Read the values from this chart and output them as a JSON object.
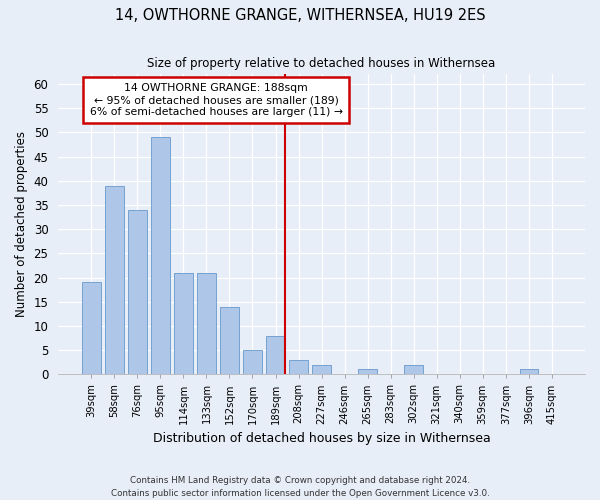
{
  "title": "14, OWTHORNE GRANGE, WITHERNSEA, HU19 2ES",
  "subtitle": "Size of property relative to detached houses in Withernsea",
  "xlabel": "Distribution of detached houses by size in Withernsea",
  "ylabel": "Number of detached properties",
  "categories": [
    "39sqm",
    "58sqm",
    "76sqm",
    "95sqm",
    "114sqm",
    "133sqm",
    "152sqm",
    "170sqm",
    "189sqm",
    "208sqm",
    "227sqm",
    "246sqm",
    "265sqm",
    "283sqm",
    "302sqm",
    "321sqm",
    "340sqm",
    "359sqm",
    "377sqm",
    "396sqm",
    "415sqm"
  ],
  "values": [
    19,
    39,
    34,
    49,
    21,
    21,
    14,
    5,
    8,
    3,
    2,
    0,
    1,
    0,
    2,
    0,
    0,
    0,
    0,
    1,
    0
  ],
  "bar_color": "#aec6e8",
  "bar_edge_color": "#6699cc",
  "marker_index": 8,
  "marker_color": "#cc0000",
  "annotation_title": "14 OWTHORNE GRANGE: 188sqm",
  "annotation_line1": "← 95% of detached houses are smaller (189)",
  "annotation_line2": "6% of semi-detached houses are larger (11) →",
  "annotation_box_color": "#cc0000",
  "ylim": [
    0,
    62
  ],
  "yticks": [
    0,
    5,
    10,
    15,
    20,
    25,
    30,
    35,
    40,
    45,
    50,
    55,
    60
  ],
  "footer1": "Contains HM Land Registry data © Crown copyright and database right 2024.",
  "footer2": "Contains public sector information licensed under the Open Government Licence v3.0.",
  "bg_color": "#e8eef8",
  "plot_bg_color": "#e8eef8"
}
